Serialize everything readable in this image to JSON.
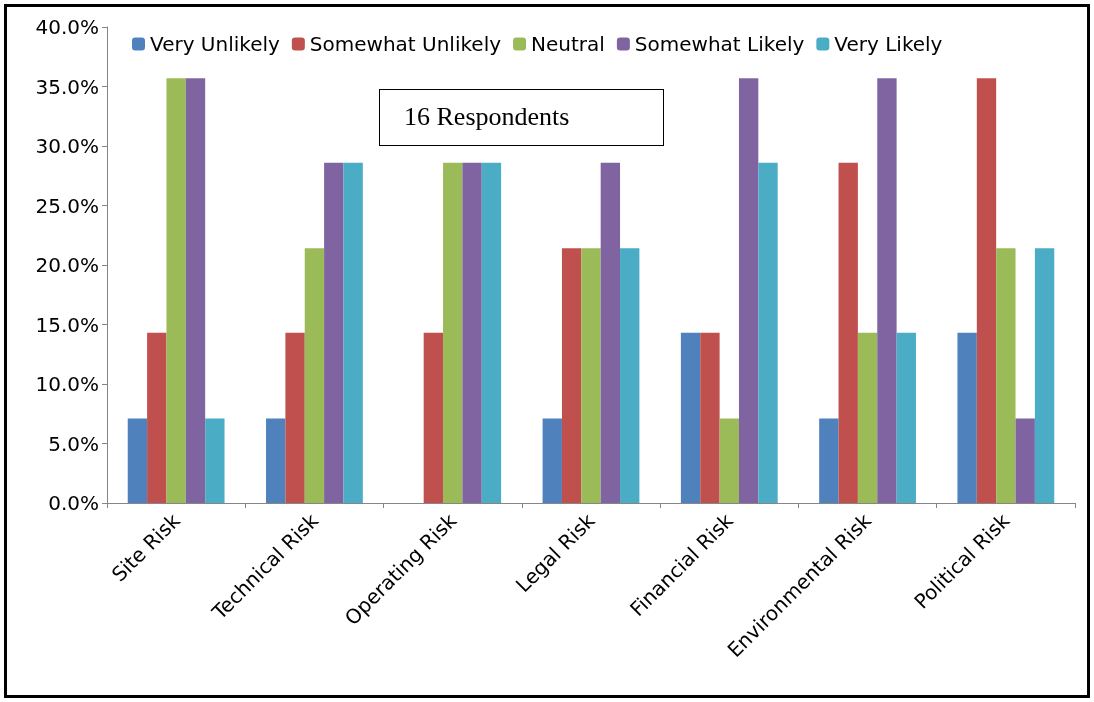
{
  "chart_data": {
    "type": "bar",
    "categories": [
      "Site Risk",
      "Technical Risk",
      "Operating Risk",
      "Legal Risk",
      "Financial Risk",
      "Environmental Risk",
      "Political Risk"
    ],
    "series": [
      {
        "name": "Very Unlikely",
        "color": "#4f81bd",
        "values": [
          7.1,
          7.1,
          0,
          7.1,
          14.3,
          7.1,
          14.3
        ]
      },
      {
        "name": "Somewhat Unlikely",
        "color": "#c0504d",
        "values": [
          14.3,
          14.3,
          14.3,
          21.4,
          14.3,
          28.6,
          35.7
        ]
      },
      {
        "name": "Neutral",
        "color": "#9bbb59",
        "values": [
          35.7,
          21.4,
          28.6,
          21.4,
          7.1,
          14.3,
          21.4
        ]
      },
      {
        "name": "Somewhat Likely",
        "color": "#8064a2",
        "values": [
          35.7,
          28.6,
          28.6,
          28.6,
          35.7,
          35.7,
          7.1
        ]
      },
      {
        "name": "Very Likely",
        "color": "#4bacc6",
        "values": [
          7.1,
          28.6,
          28.6,
          21.4,
          28.6,
          14.3,
          21.4
        ]
      }
    ],
    "ylim": [
      0,
      40
    ],
    "yticks": [
      {
        "value": 0,
        "label": "0.0%"
      },
      {
        "value": 5,
        "label": "5.0%"
      },
      {
        "value": 10,
        "label": "10.0%"
      },
      {
        "value": 15,
        "label": "15.0%"
      },
      {
        "value": 20,
        "label": "20.0%"
      },
      {
        "value": 25,
        "label": "25.0%"
      },
      {
        "value": 30,
        "label": "30.0%"
      },
      {
        "value": 35,
        "label": "35.0%"
      },
      {
        "value": 40,
        "label": "40.0%"
      }
    ],
    "annotations": [
      "16 Respondents"
    ],
    "legend": "top",
    "grid": false
  }
}
